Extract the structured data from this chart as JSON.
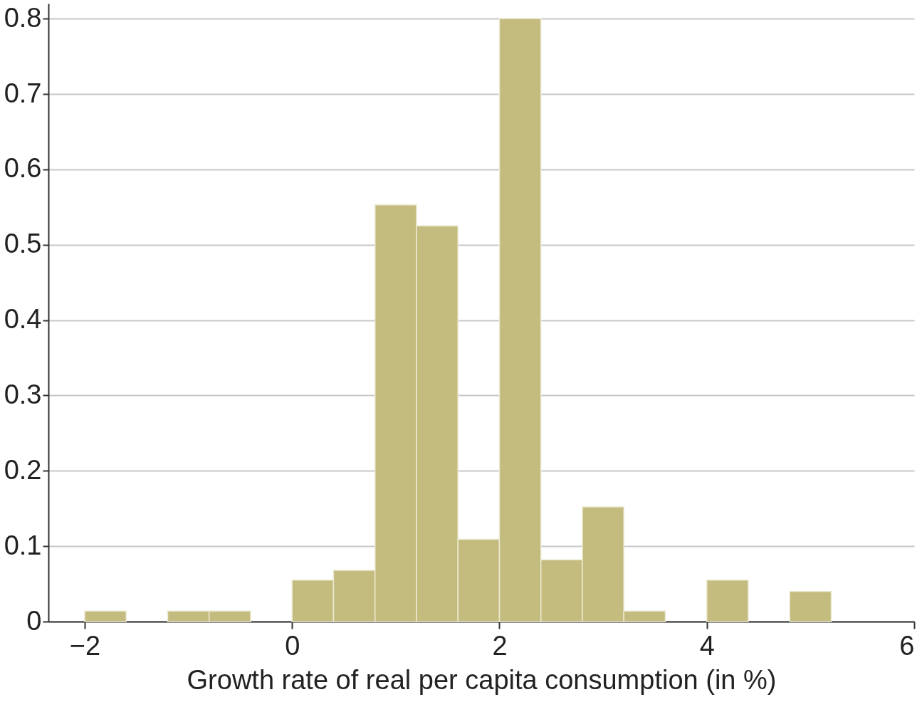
{
  "chart_data": {
    "type": "histogram",
    "xlabel": "Growth rate of real per capita consumption (in %)",
    "bins": [
      -2.0,
      -1.6,
      -1.2,
      -0.8,
      -0.4,
      0.0,
      0.4,
      0.8,
      1.2,
      1.6,
      2.0,
      2.4,
      2.8,
      3.2,
      3.6,
      4.0,
      4.4,
      4.8,
      5.2
    ],
    "values": [
      0.014,
      0,
      0.014,
      0.014,
      0,
      0.055,
      0.068,
      0.553,
      0.525,
      0.109,
      0.8,
      0.082,
      0.152,
      0.014,
      0,
      0.055,
      0,
      0.04
    ],
    "color": "#c4bb7e",
    "xlim": [
      -2.35,
      6
    ],
    "xticks": [
      {
        "value": -2,
        "label": "−2"
      },
      0,
      2,
      4,
      6
    ],
    "ylim": [
      0,
      0.82
    ],
    "yticks": [
      0,
      0.1,
      0.2,
      0.3,
      0.4,
      0.5,
      0.6,
      0.7,
      0.8
    ],
    "grid": "y"
  }
}
